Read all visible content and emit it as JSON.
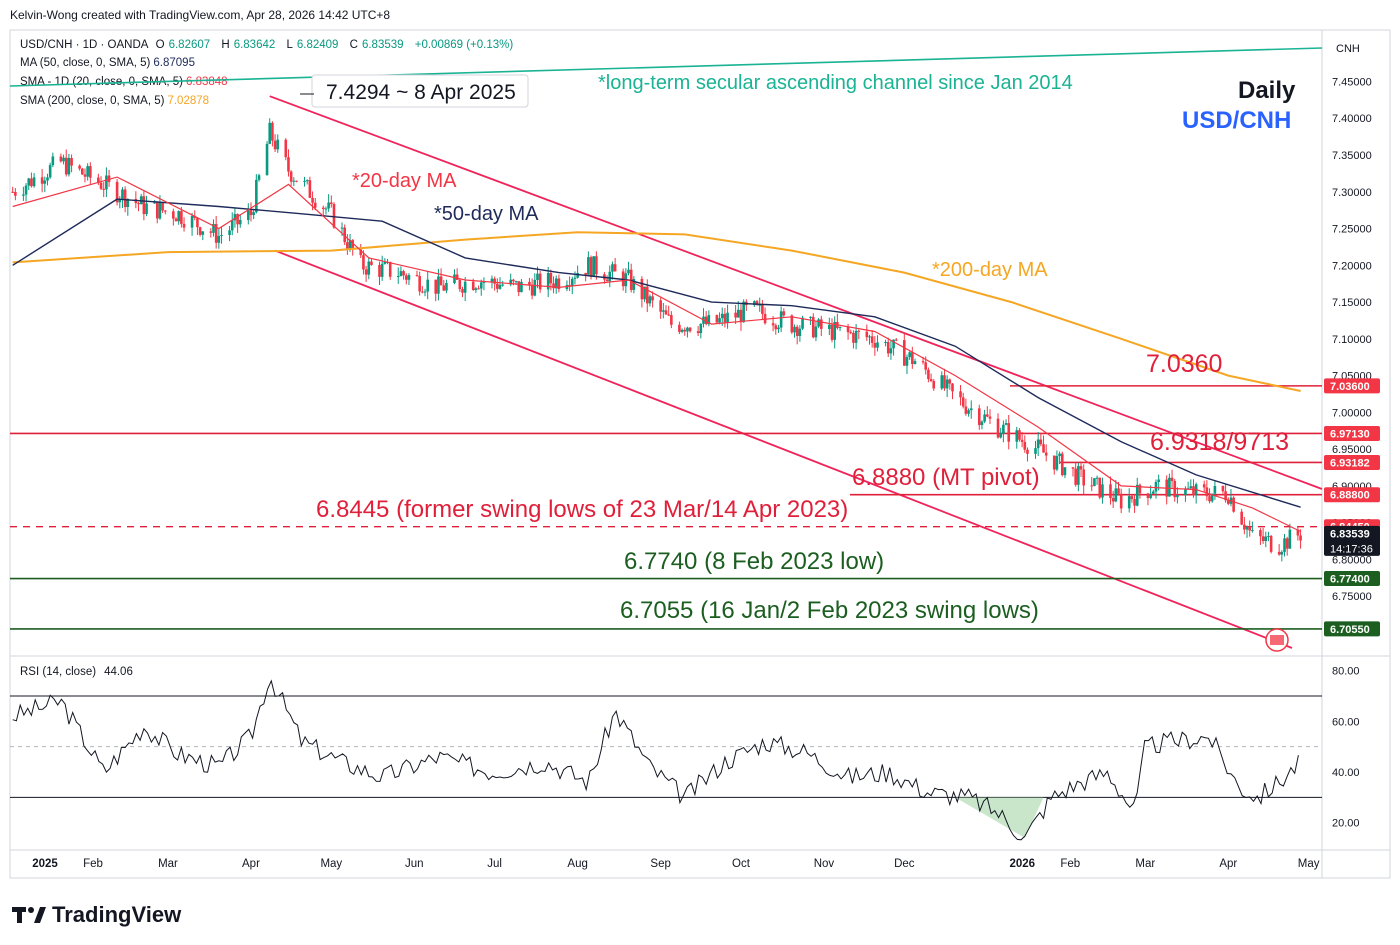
{
  "header": {
    "credit": "Kelvin-Wong created with TradingView.com, Apr 28, 2026 14:42 UTC+8"
  },
  "legend": {
    "symbol_line": "USD/CNH · 1D · OANDA",
    "open_label": "O",
    "open": "6.82607",
    "high_label": "H",
    "high": "6.83642",
    "low_label": "L",
    "low": "6.82409",
    "close_label": "C",
    "close": "6.83539",
    "change": "+0.00869 (+0.13%)",
    "ma50_label": "MA (50, close, 0, SMA, 5)",
    "ma50_value": "6.87095",
    "sma20_label": "SMA - 1D (20, close, 0, SMA, 5)",
    "sma20_value": "6.83848",
    "sma200_label": "SMA (200, close, 0, SMA, 5)",
    "sma200_value": "7.02878",
    "rsi_label": "RSI (14, close)",
    "rsi_value": "44.06"
  },
  "currency_label": "CNH",
  "logo_text": "TradingView",
  "colors": {
    "up": "#089981",
    "down": "#f23645",
    "ma20": "#f23645",
    "ma50": "#1e2a5a",
    "ma200": "#f5a623",
    "channel": "#f0245a",
    "secular": "#1ab394",
    "resistance": "#e0203a",
    "support": "#1b5e20",
    "rsi": "#131722"
  },
  "annotations": {
    "top_note": "*long-term secular ascending channel since Jan 2014",
    "timeframe": "Daily",
    "pair": "USD/CNH",
    "peak_label": "7.4294 ~ 8 Apr 2025",
    "ma20_note": "*20-day MA",
    "ma50_note": "*50-day MA",
    "ma200_note": "*200-day MA",
    "r1": "7.0360",
    "r2": "6.9318/9713",
    "pivot": "6.8880 (MT pivot)",
    "swing": "6.8445 (former swing lows of 23 Mar/14 Apr 2023)",
    "s1": "6.7740 (8 Feb 2023 low)",
    "s2": "6.7055 (16 Jan/2 Feb 2023 swing lows)"
  },
  "chart_data": {
    "type": "line",
    "title": "USD/CNH",
    "xlabel": "",
    "ylabel": "",
    "y_range": [
      6.67,
      7.52
    ],
    "y_ticks": [
      "7.45000",
      "7.40000",
      "7.35000",
      "7.30000",
      "7.25000",
      "7.20000",
      "7.15000",
      "7.10000",
      "7.05000",
      "7.00000",
      "6.95000",
      "6.90000",
      "6.85000",
      "6.80000",
      "6.75000"
    ],
    "x_ticks": [
      "2025",
      "Feb",
      "Mar",
      "Apr",
      "May",
      "Jun",
      "Jul",
      "Aug",
      "Sep",
      "Oct",
      "Nov",
      "Dec",
      "2026",
      "Feb",
      "Mar",
      "Apr",
      "May"
    ],
    "price_tags": [
      {
        "label": "7.03600",
        "value": 7.036,
        "color": "#f23645"
      },
      {
        "label": "6.97130",
        "value": 6.9713,
        "color": "#f23645"
      },
      {
        "label": "6.93182",
        "value": 6.93182,
        "color": "#f23645"
      },
      {
        "label": "6.88800",
        "value": 6.888,
        "color": "#f23645"
      },
      {
        "label": "6.84450",
        "value": 6.8445,
        "color": "#f23645"
      },
      {
        "label": "6.83539",
        "value": 6.83539,
        "color": "#131722",
        "extra": "14:17:36"
      },
      {
        "label": "6.77400",
        "value": 6.774,
        "color": "#1b5e20"
      },
      {
        "label": "6.70550",
        "value": 6.7055,
        "color": "#1b5e20"
      }
    ],
    "horizontal_levels": [
      {
        "value": 7.036,
        "kind": "resistance"
      },
      {
        "value": 6.9713,
        "kind": "resistance"
      },
      {
        "value": 6.93182,
        "kind": "resistance"
      },
      {
        "value": 6.888,
        "kind": "resistance"
      },
      {
        "value": 6.8445,
        "kind": "dashed"
      },
      {
        "value": 6.774,
        "kind": "support"
      },
      {
        "value": 6.7055,
        "kind": "support"
      }
    ],
    "series": [
      {
        "name": "USD/CNH",
        "x": [
          "2025-01-02",
          "2025-01-20",
          "2025-02-05",
          "2025-02-20",
          "2025-03-05",
          "2025-03-20",
          "2025-04-01",
          "2025-04-08",
          "2025-04-15",
          "2025-05-01",
          "2025-05-12",
          "2025-05-26",
          "2025-06-10",
          "2025-06-25",
          "2025-07-10",
          "2025-07-25",
          "2025-08-05",
          "2025-08-20",
          "2025-09-05",
          "2025-09-20",
          "2025-10-05",
          "2025-10-20",
          "2025-11-05",
          "2025-11-20",
          "2025-12-05",
          "2025-12-20",
          "2026-01-05",
          "2026-01-20",
          "2026-02-05",
          "2026-02-20",
          "2026-03-05",
          "2026-03-20",
          "2026-04-01",
          "2026-04-10",
          "2026-04-20",
          "2026-04-28"
        ],
        "values": [
          7.3,
          7.34,
          7.31,
          7.28,
          7.27,
          7.24,
          7.27,
          7.38,
          7.33,
          7.27,
          7.2,
          7.19,
          7.17,
          7.18,
          7.17,
          7.18,
          7.2,
          7.18,
          7.12,
          7.12,
          7.14,
          7.12,
          7.11,
          7.1,
          7.07,
          7.02,
          6.98,
          6.95,
          6.91,
          6.88,
          6.9,
          6.89,
          6.89,
          6.83,
          6.82,
          6.835
        ]
      },
      {
        "name": "SMA 20",
        "x": [
          "2025-01-02",
          "2025-02-10",
          "2025-03-20",
          "2025-04-15",
          "2025-05-15",
          "2025-06-20",
          "2025-07-25",
          "2025-08-20",
          "2025-09-20",
          "2025-10-20",
          "2025-11-20",
          "2025-12-20",
          "2026-01-20",
          "2026-02-20",
          "2026-03-20",
          "2026-04-10",
          "2026-04-28"
        ],
        "values": [
          7.28,
          7.32,
          7.25,
          7.31,
          7.21,
          7.18,
          7.17,
          7.18,
          7.12,
          7.13,
          7.11,
          7.05,
          6.98,
          6.9,
          6.895,
          6.87,
          6.838
        ]
      },
      {
        "name": "MA 50",
        "x": [
          "2025-01-02",
          "2025-02-10",
          "2025-03-20",
          "2025-04-20",
          "2025-05-20",
          "2025-06-20",
          "2025-07-25",
          "2025-08-20",
          "2025-09-20",
          "2025-10-20",
          "2025-11-20",
          "2025-12-20",
          "2026-01-20",
          "2026-02-20",
          "2026-03-20",
          "2026-04-28"
        ],
        "values": [
          7.2,
          7.29,
          7.28,
          7.27,
          7.26,
          7.21,
          7.19,
          7.18,
          7.15,
          7.145,
          7.13,
          7.09,
          7.02,
          6.96,
          6.915,
          6.871
        ]
      },
      {
        "name": "SMA 200",
        "x": [
          "2025-01-02",
          "2025-03-01",
          "2025-05-01",
          "2025-06-20",
          "2025-08-01",
          "2025-09-10",
          "2025-10-20",
          "2025-12-01",
          "2026-01-10",
          "2026-02-20",
          "2026-04-01",
          "2026-04-28"
        ],
        "values": [
          7.204,
          7.218,
          7.22,
          7.235,
          7.245,
          7.242,
          7.22,
          7.19,
          7.15,
          7.1,
          7.05,
          7.029
        ]
      }
    ],
    "rsi": {
      "range": [
        10,
        85
      ],
      "ticks": [
        "80.00",
        "60.00",
        "40.00",
        "20.00"
      ],
      "bands": [
        70,
        50,
        30
      ],
      "x": [
        "2025-01-02",
        "2025-01-20",
        "2025-02-05",
        "2025-02-20",
        "2025-03-05",
        "2025-03-20",
        "2025-04-01",
        "2025-04-08",
        "2025-04-20",
        "2025-05-05",
        "2025-05-20",
        "2025-06-10",
        "2025-06-30",
        "2025-07-20",
        "2025-08-05",
        "2025-08-15",
        "2025-08-28",
        "2025-09-10",
        "2025-09-25",
        "2025-10-10",
        "2025-10-25",
        "2025-11-10",
        "2025-11-25",
        "2025-12-10",
        "2025-12-25",
        "2026-01-05",
        "2026-01-15",
        "2026-01-25",
        "2026-02-05",
        "2026-02-15",
        "2026-02-25",
        "2026-03-01",
        "2026-03-10",
        "2026-03-25",
        "2026-04-05",
        "2026-04-12",
        "2026-04-20",
        "2026-04-28"
      ],
      "values": [
        62,
        68,
        40,
        58,
        47,
        42,
        54,
        78,
        52,
        44,
        38,
        46,
        40,
        44,
        36,
        64,
        42,
        30,
        44,
        52,
        48,
        38,
        40,
        32,
        30,
        24,
        14,
        30,
        36,
        40,
        24,
        50,
        52,
        54,
        34,
        30,
        36,
        44.06
      ]
    }
  }
}
